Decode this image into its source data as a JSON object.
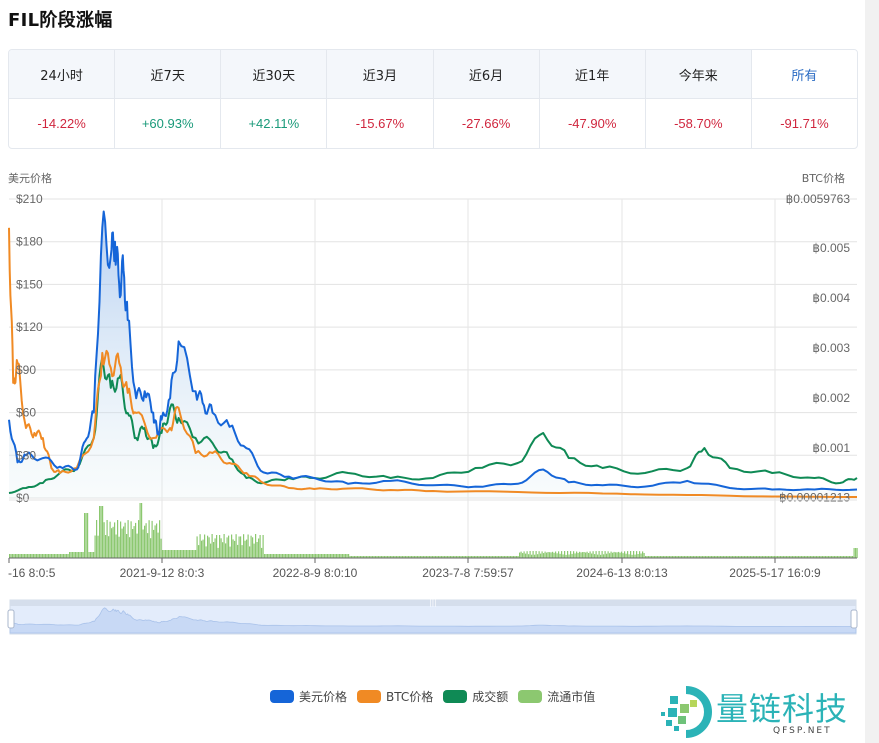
{
  "header": {
    "title": "FIL阶段涨幅"
  },
  "periods": [
    {
      "label": "24小时",
      "value": "-14.22%",
      "trend": "neg",
      "active": false
    },
    {
      "label": "近7天",
      "value": "+60.93%",
      "trend": "pos",
      "active": false
    },
    {
      "label": "近30天",
      "value": "+42.11%",
      "trend": "pos",
      "active": false
    },
    {
      "label": "近3月",
      "value": "-15.67%",
      "trend": "neg",
      "active": false
    },
    {
      "label": "近6月",
      "value": "-27.66%",
      "trend": "neg",
      "active": false
    },
    {
      "label": "近1年",
      "value": "-47.90%",
      "trend": "neg",
      "active": false
    },
    {
      "label": "今年来",
      "value": "-58.70%",
      "trend": "neg",
      "active": false
    },
    {
      "label": "所有",
      "value": "-91.71%",
      "trend": "neg",
      "active": true
    }
  ],
  "colors": {
    "usd": "#1565d8",
    "btc": "#f08a24",
    "volume": "#0f8a55",
    "market_cap": "#8cc870",
    "negative": "#d0263e",
    "positive": "#1a9a7a",
    "active_tab": "#2b6cc4"
  },
  "legend": [
    {
      "label": "美元价格",
      "color": "#1565d8"
    },
    {
      "label": "BTC价格",
      "color": "#f08a24"
    },
    {
      "label": "成交额",
      "color": "#0f8a55"
    },
    {
      "label": "流通市值",
      "color": "#8cc870"
    }
  ],
  "logo": {
    "text": "量链科技",
    "sub": "QFSP.NET"
  },
  "chart_data": {
    "type": "line",
    "title": "FIL阶段涨幅",
    "ylabel_left": "美元价格",
    "ylabel_right": "BTC价格",
    "left_axis": {
      "ticks": [
        "$210",
        "$180",
        "$150",
        "$120",
        "$90",
        "$60",
        "$30",
        "$0"
      ],
      "range": [
        0,
        210
      ]
    },
    "right_axis": {
      "ticks": [
        "฿0.0059763",
        "฿0.005",
        "฿0.004",
        "฿0.003",
        "฿0.002",
        "฿0.001",
        "฿0.00001213"
      ],
      "range": [
        1.213e-05,
        0.0059763
      ]
    },
    "x_ticks": [
      "-16 8:0:5",
      "2021-9-12 8:0:3",
      "2022-8-9 8:0:10",
      "2023-7-8 7:59:57",
      "2024-6-13 8:0:13",
      "2025-5-17 16:0:9"
    ],
    "grid": true,
    "legend_position": "bottom",
    "series": [
      {
        "name": "美元价格",
        "axis": "left",
        "x": [
          0,
          0.01,
          0.02,
          0.04,
          0.06,
          0.08,
          0.09,
          0.1,
          0.11,
          0.12,
          0.125,
          0.13,
          0.135,
          0.14,
          0.15,
          0.16,
          0.17,
          0.175,
          0.18,
          0.19,
          0.2,
          0.22,
          0.23,
          0.24,
          0.26,
          0.28,
          0.3,
          0.33,
          0.36,
          0.4,
          0.45,
          0.5,
          0.55,
          0.6,
          0.63,
          0.66,
          0.7,
          0.75,
          0.8,
          0.85,
          0.9,
          0.95,
          1.0
        ],
        "values": [
          55,
          25,
          30,
          28,
          22,
          20,
          40,
          60,
          190,
          170,
          180,
          150,
          160,
          125,
          70,
          75,
          60,
          45,
          55,
          70,
          110,
          75,
          65,
          60,
          50,
          35,
          18,
          15,
          14,
          10,
          12,
          9,
          8,
          10,
          20,
          11,
          9,
          8,
          12,
          7,
          6,
          6,
          6
        ]
      },
      {
        "name": "BTC价格",
        "axis": "right",
        "x": [
          0,
          0.005,
          0.01,
          0.02,
          0.03,
          0.04,
          0.05,
          0.06,
          0.08,
          0.1,
          0.11,
          0.12,
          0.13,
          0.14,
          0.15,
          0.17,
          0.19,
          0.2,
          0.22,
          0.24,
          0.26,
          0.28,
          0.3,
          0.33,
          0.36,
          0.4,
          0.45,
          0.5,
          0.6,
          0.7,
          0.8,
          0.9,
          1.0
        ],
        "values": [
          0.0054,
          0.0023,
          0.0027,
          0.0014,
          0.0013,
          0.0012,
          0.0006,
          0.0005,
          0.0006,
          0.0012,
          0.0029,
          0.0026,
          0.0027,
          0.0021,
          0.0017,
          0.0012,
          0.0014,
          0.0018,
          0.0009,
          0.0009,
          0.0007,
          0.0005,
          0.0003,
          0.0002,
          0.00018,
          0.00019,
          0.00016,
          0.00014,
          0.00012,
          9e-05,
          6e-05,
          3e-05,
          2e-05
        ]
      },
      {
        "name": "成交额",
        "axis": "right",
        "x": [
          0,
          0.02,
          0.04,
          0.06,
          0.08,
          0.1,
          0.11,
          0.12,
          0.13,
          0.14,
          0.15,
          0.16,
          0.17,
          0.18,
          0.19,
          0.2,
          0.22,
          0.24,
          0.26,
          0.28,
          0.3,
          0.33,
          0.36,
          0.4,
          0.45,
          0.5,
          0.55,
          0.6,
          0.63,
          0.66,
          0.7,
          0.75,
          0.8,
          0.82,
          0.85,
          0.9,
          0.95,
          0.98,
          1.0
        ],
        "values": [
          0.0001,
          0.0002,
          0.0003,
          0.0005,
          0.0006,
          0.0012,
          0.0028,
          0.0022,
          0.0024,
          0.0017,
          0.0012,
          0.0014,
          0.001,
          0.0013,
          0.0018,
          0.0016,
          0.0012,
          0.0011,
          0.0008,
          0.0004,
          0.0003,
          0.0004,
          0.0004,
          0.0005,
          0.0004,
          0.0004,
          0.0006,
          0.0007,
          0.0013,
          0.0008,
          0.0006,
          0.0005,
          0.0006,
          0.001,
          0.0006,
          0.0005,
          0.0004,
          0.0003,
          0.0004
        ]
      },
      {
        "name": "流通市值",
        "axis": "volume",
        "note": "bar histogram in lower pane, peaks around 2021"
      }
    ]
  }
}
